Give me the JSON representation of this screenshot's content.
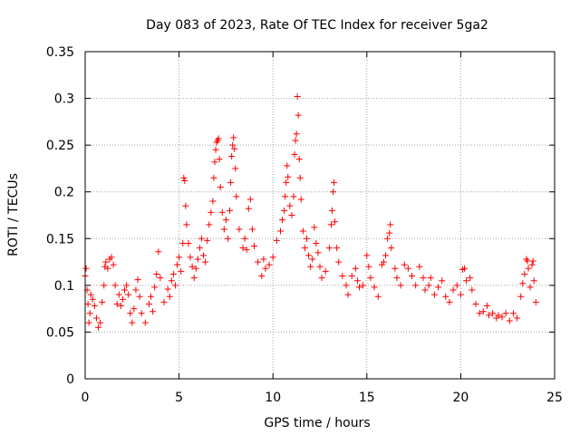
{
  "chart_data": {
    "type": "scatter",
    "title": "Day 083 of 2023, Rate Of TEC Index for receiver 5ga2",
    "xlabel": "GPS time / hours",
    "ylabel": "ROTI / TECUs",
    "xlim": [
      0,
      25
    ],
    "ylim": [
      0,
      0.35
    ],
    "x_ticks": [
      0,
      5,
      10,
      15,
      20,
      25
    ],
    "y_ticks": [
      0,
      0.05,
      0.1,
      0.15,
      0.2,
      0.25,
      0.3,
      0.35
    ],
    "x_tick_labels": [
      "0",
      "5",
      "10",
      "15",
      "20",
      "25"
    ],
    "y_tick_labels": [
      "0",
      "0.05",
      "0.1",
      "0.15",
      "0.2",
      "0.25",
      "0.3",
      "0.35"
    ],
    "grid": true,
    "legend": "none",
    "marker": "+",
    "marker_color": "#ff0000",
    "series": [
      {
        "points": [
          [
            0.0,
            0.11
          ],
          [
            0.05,
            0.118
          ],
          [
            0.1,
            0.095
          ],
          [
            0.15,
            0.08
          ],
          [
            0.2,
            0.06
          ],
          [
            0.25,
            0.07
          ],
          [
            0.3,
            0.09
          ],
          [
            0.4,
            0.085
          ],
          [
            0.5,
            0.078
          ],
          [
            0.6,
            0.065
          ],
          [
            0.7,
            0.055
          ],
          [
            0.8,
            0.06
          ],
          [
            0.9,
            0.082
          ],
          [
            1.0,
            0.1
          ],
          [
            1.05,
            0.12
          ],
          [
            1.1,
            0.125
          ],
          [
            1.2,
            0.118
          ],
          [
            1.3,
            0.128
          ],
          [
            1.4,
            0.13
          ],
          [
            1.5,
            0.122
          ],
          [
            1.6,
            0.1
          ],
          [
            1.7,
            0.08
          ],
          [
            1.8,
            0.09
          ],
          [
            1.9,
            0.078
          ],
          [
            2.0,
            0.085
          ],
          [
            2.1,
            0.095
          ],
          [
            2.2,
            0.1
          ],
          [
            2.3,
            0.09
          ],
          [
            2.4,
            0.07
          ],
          [
            2.5,
            0.06
          ],
          [
            2.6,
            0.075
          ],
          [
            2.7,
            0.095
          ],
          [
            2.8,
            0.106
          ],
          [
            2.9,
            0.088
          ],
          [
            3.0,
            0.07
          ],
          [
            3.2,
            0.06
          ],
          [
            3.4,
            0.08
          ],
          [
            3.5,
            0.088
          ],
          [
            3.6,
            0.072
          ],
          [
            3.7,
            0.098
          ],
          [
            3.8,
            0.112
          ],
          [
            3.9,
            0.136
          ],
          [
            4.0,
            0.108
          ],
          [
            4.2,
            0.082
          ],
          [
            4.4,
            0.096
          ],
          [
            4.5,
            0.088
          ],
          [
            4.6,
            0.105
          ],
          [
            4.7,
            0.112
          ],
          [
            4.8,
            0.1
          ],
          [
            4.9,
            0.122
          ],
          [
            5.0,
            0.13
          ],
          [
            5.1,
            0.115
          ],
          [
            5.2,
            0.145
          ],
          [
            5.25,
            0.215
          ],
          [
            5.3,
            0.212
          ],
          [
            5.35,
            0.185
          ],
          [
            5.4,
            0.165
          ],
          [
            5.5,
            0.145
          ],
          [
            5.6,
            0.13
          ],
          [
            5.7,
            0.12
          ],
          [
            5.8,
            0.108
          ],
          [
            5.9,
            0.118
          ],
          [
            6.0,
            0.128
          ],
          [
            6.1,
            0.14
          ],
          [
            6.2,
            0.15
          ],
          [
            6.3,
            0.132
          ],
          [
            6.4,
            0.125
          ],
          [
            6.5,
            0.148
          ],
          [
            6.6,
            0.165
          ],
          [
            6.7,
            0.178
          ],
          [
            6.8,
            0.19
          ],
          [
            6.85,
            0.215
          ],
          [
            6.9,
            0.232
          ],
          [
            6.95,
            0.245
          ],
          [
            7.0,
            0.253
          ],
          [
            7.05,
            0.255
          ],
          [
            7.1,
            0.257
          ],
          [
            7.15,
            0.235
          ],
          [
            7.2,
            0.205
          ],
          [
            7.3,
            0.178
          ],
          [
            7.4,
            0.16
          ],
          [
            7.5,
            0.17
          ],
          [
            7.6,
            0.15
          ],
          [
            7.7,
            0.18
          ],
          [
            7.75,
            0.21
          ],
          [
            7.8,
            0.238
          ],
          [
            7.85,
            0.25
          ],
          [
            7.9,
            0.258
          ],
          [
            7.95,
            0.246
          ],
          [
            8.0,
            0.225
          ],
          [
            8.05,
            0.195
          ],
          [
            8.2,
            0.16
          ],
          [
            8.4,
            0.14
          ],
          [
            8.5,
            0.15
          ],
          [
            8.6,
            0.138
          ],
          [
            8.7,
            0.182
          ],
          [
            8.8,
            0.192
          ],
          [
            8.9,
            0.16
          ],
          [
            9.0,
            0.142
          ],
          [
            9.2,
            0.125
          ],
          [
            9.4,
            0.11
          ],
          [
            9.5,
            0.128
          ],
          [
            9.6,
            0.118
          ],
          [
            9.8,
            0.122
          ],
          [
            10.0,
            0.13
          ],
          [
            10.2,
            0.148
          ],
          [
            10.4,
            0.158
          ],
          [
            10.5,
            0.17
          ],
          [
            10.6,
            0.18
          ],
          [
            10.65,
            0.195
          ],
          [
            10.7,
            0.21
          ],
          [
            10.75,
            0.228
          ],
          [
            10.8,
            0.216
          ],
          [
            10.9,
            0.185
          ],
          [
            11.0,
            0.175
          ],
          [
            11.1,
            0.195
          ],
          [
            11.15,
            0.24
          ],
          [
            11.2,
            0.255
          ],
          [
            11.25,
            0.262
          ],
          [
            11.3,
            0.302
          ],
          [
            11.35,
            0.282
          ],
          [
            11.4,
            0.235
          ],
          [
            11.45,
            0.215
          ],
          [
            11.5,
            0.192
          ],
          [
            11.6,
            0.158
          ],
          [
            11.7,
            0.14
          ],
          [
            11.8,
            0.15
          ],
          [
            11.9,
            0.132
          ],
          [
            12.0,
            0.12
          ],
          [
            12.1,
            0.128
          ],
          [
            12.2,
            0.162
          ],
          [
            12.3,
            0.145
          ],
          [
            12.4,
            0.135
          ],
          [
            12.5,
            0.12
          ],
          [
            12.6,
            0.108
          ],
          [
            12.8,
            0.115
          ],
          [
            13.0,
            0.14
          ],
          [
            13.1,
            0.165
          ],
          [
            13.15,
            0.18
          ],
          [
            13.2,
            0.2
          ],
          [
            13.25,
            0.21
          ],
          [
            13.3,
            0.168
          ],
          [
            13.4,
            0.14
          ],
          [
            13.5,
            0.125
          ],
          [
            13.7,
            0.11
          ],
          [
            13.9,
            0.1
          ],
          [
            14.0,
            0.09
          ],
          [
            14.2,
            0.11
          ],
          [
            14.4,
            0.118
          ],
          [
            14.5,
            0.105
          ],
          [
            14.6,
            0.098
          ],
          [
            14.8,
            0.1
          ],
          [
            15.0,
            0.132
          ],
          [
            15.1,
            0.12
          ],
          [
            15.2,
            0.108
          ],
          [
            15.4,
            0.098
          ],
          [
            15.6,
            0.088
          ],
          [
            15.8,
            0.122
          ],
          [
            15.9,
            0.125
          ],
          [
            16.0,
            0.132
          ],
          [
            16.1,
            0.15
          ],
          [
            16.2,
            0.156
          ],
          [
            16.25,
            0.165
          ],
          [
            16.3,
            0.14
          ],
          [
            16.5,
            0.118
          ],
          [
            16.6,
            0.108
          ],
          [
            16.8,
            0.1
          ],
          [
            17.0,
            0.122
          ],
          [
            17.2,
            0.118
          ],
          [
            17.4,
            0.11
          ],
          [
            17.6,
            0.1
          ],
          [
            17.8,
            0.12
          ],
          [
            18.0,
            0.108
          ],
          [
            18.1,
            0.095
          ],
          [
            18.3,
            0.1
          ],
          [
            18.4,
            0.108
          ],
          [
            18.6,
            0.09
          ],
          [
            18.8,
            0.098
          ],
          [
            19.0,
            0.105
          ],
          [
            19.2,
            0.088
          ],
          [
            19.4,
            0.082
          ],
          [
            19.6,
            0.095
          ],
          [
            19.8,
            0.1
          ],
          [
            20.0,
            0.09
          ],
          [
            20.1,
            0.117
          ],
          [
            20.2,
            0.118
          ],
          [
            20.3,
            0.105
          ],
          [
            20.5,
            0.108
          ],
          [
            20.6,
            0.095
          ],
          [
            20.8,
            0.08
          ],
          [
            21.0,
            0.07
          ],
          [
            21.2,
            0.072
          ],
          [
            21.4,
            0.078
          ],
          [
            21.5,
            0.068
          ],
          [
            21.7,
            0.07
          ],
          [
            21.9,
            0.065
          ],
          [
            22.0,
            0.068
          ],
          [
            22.2,
            0.066
          ],
          [
            22.4,
            0.07
          ],
          [
            22.6,
            0.062
          ],
          [
            22.8,
            0.07
          ],
          [
            23.0,
            0.065
          ],
          [
            23.2,
            0.088
          ],
          [
            23.3,
            0.102
          ],
          [
            23.4,
            0.112
          ],
          [
            23.5,
            0.128
          ],
          [
            23.55,
            0.126
          ],
          [
            23.6,
            0.118
          ],
          [
            23.7,
            0.098
          ],
          [
            23.8,
            0.122
          ],
          [
            23.85,
            0.126
          ],
          [
            23.9,
            0.105
          ],
          [
            24.0,
            0.082
          ]
        ]
      }
    ]
  }
}
